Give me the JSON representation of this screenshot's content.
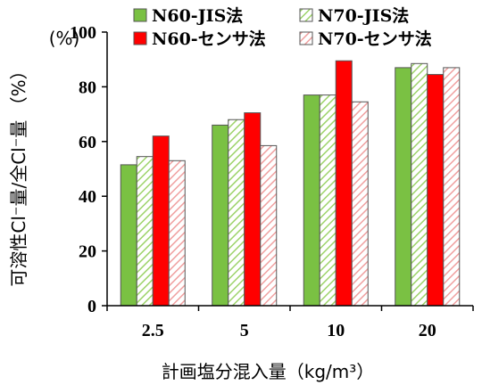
{
  "chart_data": {
    "type": "bar",
    "categories": [
      "2.5",
      "5",
      "10",
      "20"
    ],
    "series": [
      {
        "name": "N60-JIS法",
        "values": [
          51.5,
          66,
          77,
          87
        ],
        "color": "#7ac143",
        "pattern": "solid"
      },
      {
        "name": "N70-JIS法",
        "values": [
          54.5,
          68,
          77,
          88.5
        ],
        "color": "#7ac143",
        "pattern": "diagonal-hatch"
      },
      {
        "name": "N60-センサ法",
        "values": [
          62,
          70.5,
          89.5,
          84.5
        ],
        "color": "#ff0000",
        "pattern": "solid"
      },
      {
        "name": "N70-センサ法",
        "values": [
          53,
          58.5,
          74.5,
          87
        ],
        "color": "#ff0000",
        "pattern": "diagonal-hatch"
      }
    ],
    "xlabel": "計画塩分混入量（kg/m³）",
    "ylabel": "可溶性Cl⁻量/全Cl⁻量 （%）",
    "y_unit_label": "(%)",
    "ylim": [
      0,
      100
    ],
    "yticks": [
      "0",
      "20",
      "40",
      "60",
      "80",
      "100"
    ],
    "grid": false,
    "legend_position": "top"
  }
}
